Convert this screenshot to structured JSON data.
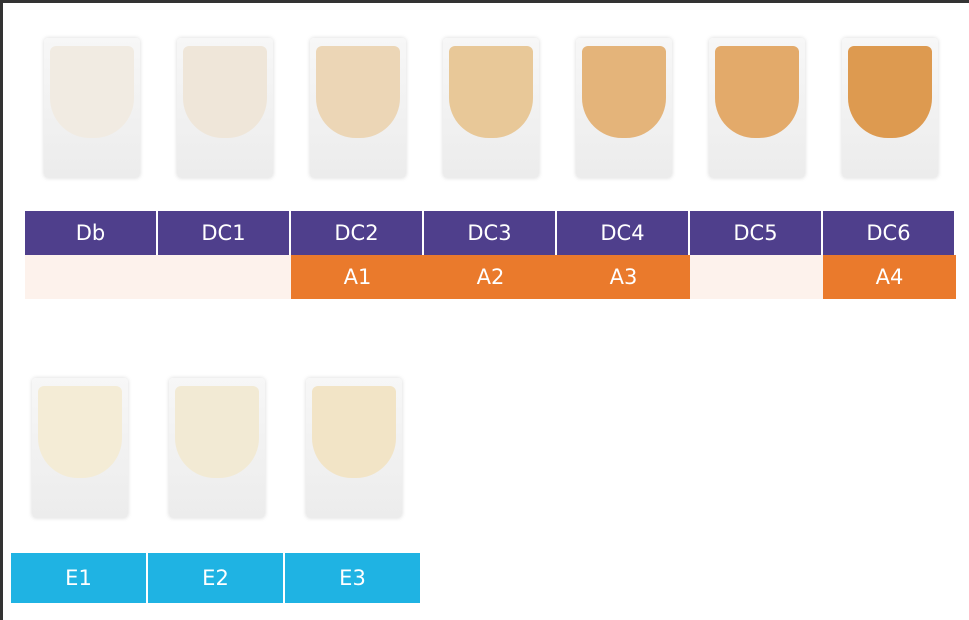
{
  "row1": [
    {
      "label": "Db",
      "vita": null
    },
    {
      "label": "DC1",
      "vita": null
    },
    {
      "label": "DC2",
      "vita": "A1"
    },
    {
      "label": "DC3",
      "vita": "A2"
    },
    {
      "label": "DC4",
      "vita": "A3"
    },
    {
      "label": "DC5",
      "vita": null
    },
    {
      "label": "DC6",
      "vita": "A4"
    }
  ],
  "row2": [
    {
      "label": "E1"
    },
    {
      "label": "E2"
    },
    {
      "label": "E3"
    }
  ]
}
